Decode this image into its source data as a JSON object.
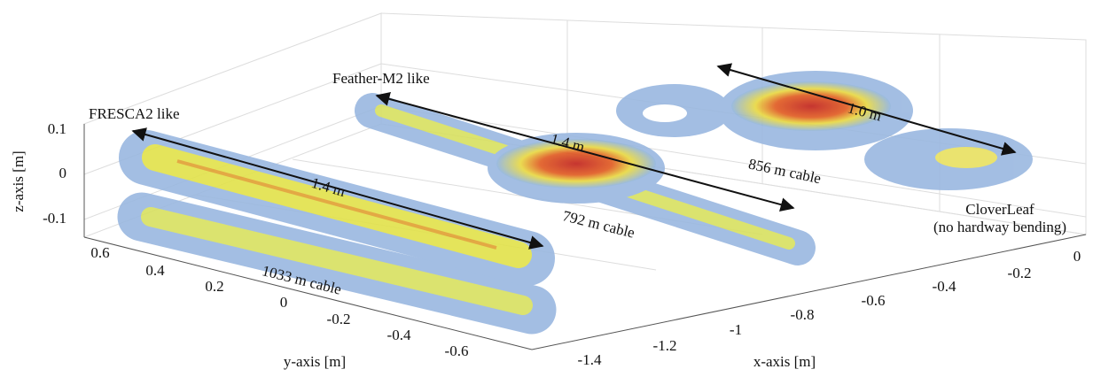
{
  "figure": {
    "axes": {
      "z_label": "z-axis [m]",
      "y_label": "y-axis [m]",
      "x_label": "x-axis [m]",
      "z_ticks": [
        0.1,
        0,
        -0.1
      ],
      "y_ticks": [
        0.6,
        0.4,
        0.2,
        0,
        -0.2,
        -0.4,
        -0.6
      ],
      "x_ticks": [
        -1.4,
        -1.2,
        -1,
        -0.8,
        -0.6,
        -0.4,
        -0.2,
        0
      ]
    },
    "magnets": [
      {
        "name": "FRESCA2 like",
        "length": "1.4 m",
        "cable": "1033 m cable"
      },
      {
        "name": "Feather-M2 like",
        "length": "1.4 m",
        "cable": "792 m cable"
      },
      {
        "name": "CloverLeaf",
        "note": "(no hardway bending)",
        "length": "1.0 m",
        "cable": "856 m cable"
      }
    ]
  }
}
